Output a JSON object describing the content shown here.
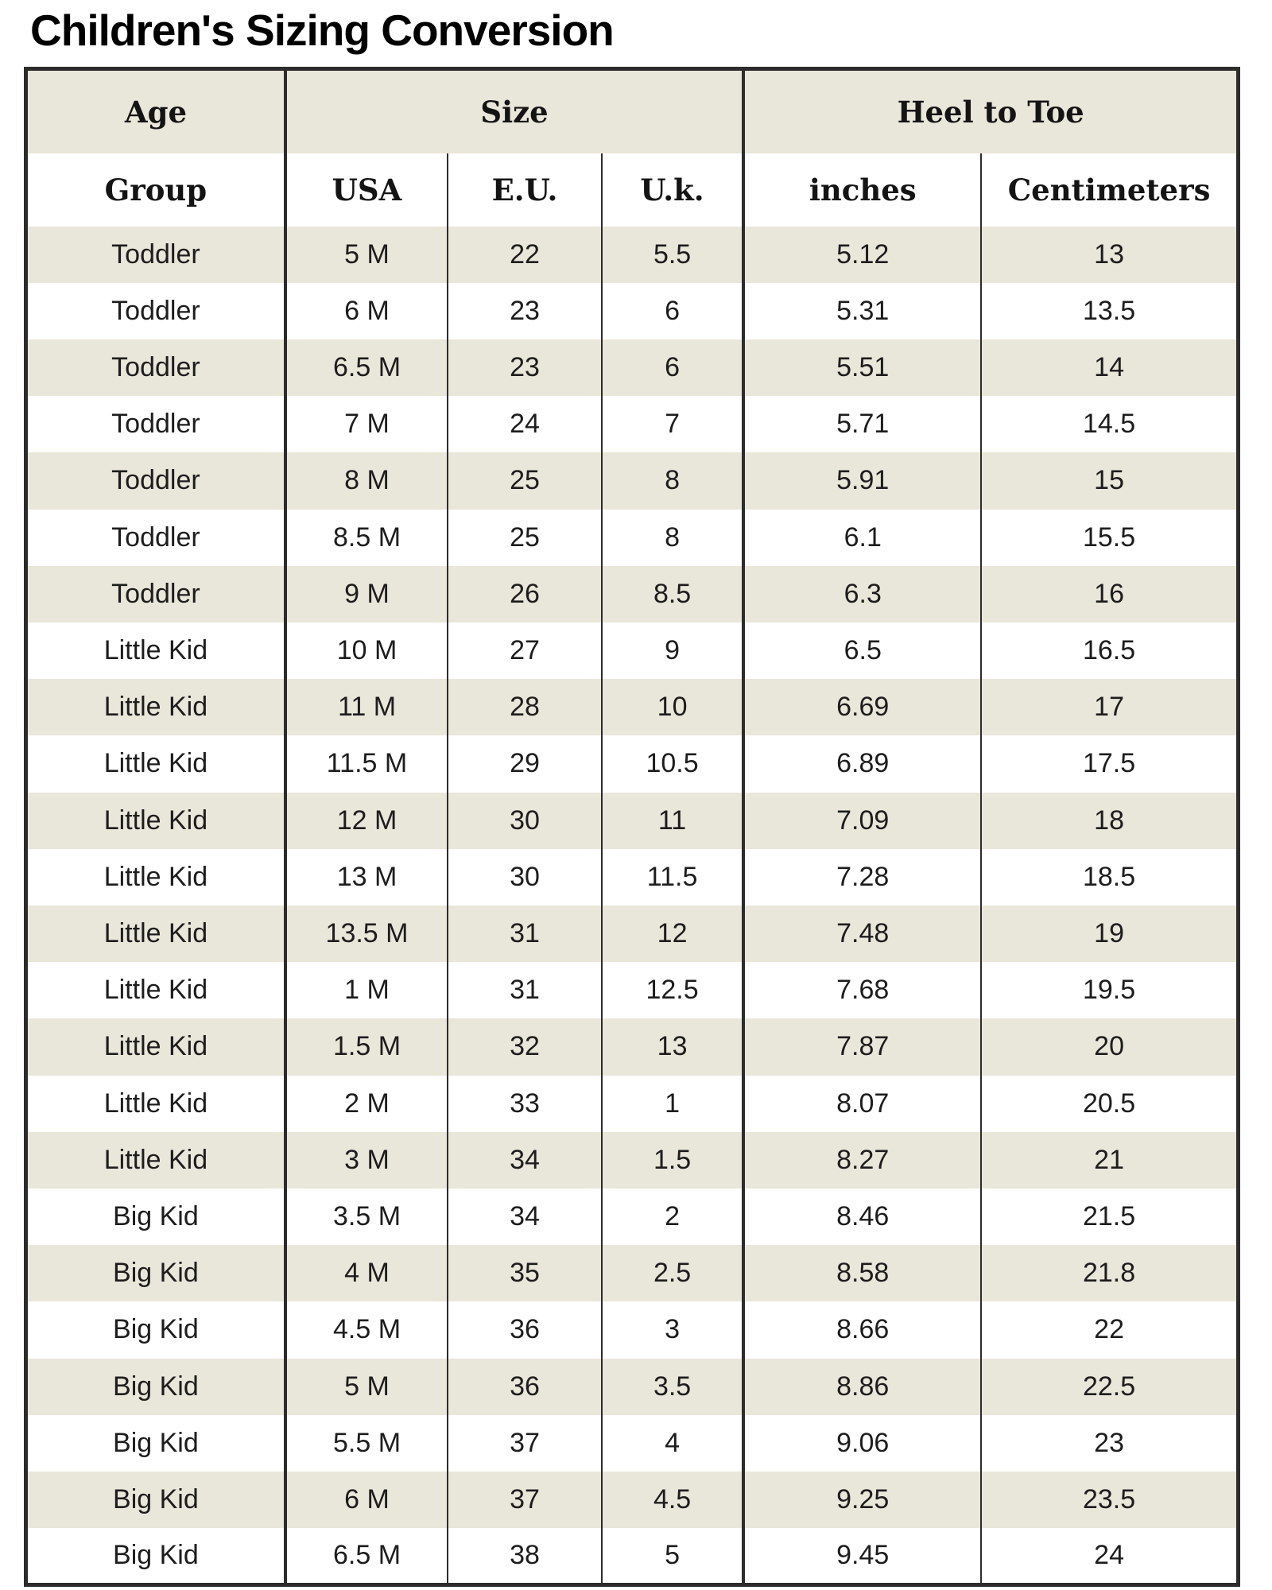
{
  "page": {
    "title": "Children's Sizing Conversion"
  },
  "table": {
    "headers": {
      "age": "Age",
      "group": "Group",
      "size": "Size",
      "heel_to_toe": "Heel to Toe",
      "usa": "USA",
      "eu": "E.U.",
      "uk": "U.k.",
      "inches": "inches",
      "centimeters": "Centimeters"
    },
    "rows": [
      {
        "group": "Toddler",
        "usa": "5 M",
        "eu": "22",
        "uk": "5.5",
        "inches": "5.12",
        "cm": "13"
      },
      {
        "group": "Toddler",
        "usa": "6 M",
        "eu": "23",
        "uk": "6",
        "inches": "5.31",
        "cm": "13.5"
      },
      {
        "group": "Toddler",
        "usa": "6.5 M",
        "eu": "23",
        "uk": "6",
        "inches": "5.51",
        "cm": "14"
      },
      {
        "group": "Toddler",
        "usa": "7 M",
        "eu": "24",
        "uk": "7",
        "inches": "5.71",
        "cm": "14.5"
      },
      {
        "group": "Toddler",
        "usa": "8 M",
        "eu": "25",
        "uk": "8",
        "inches": "5.91",
        "cm": "15"
      },
      {
        "group": "Toddler",
        "usa": "8.5 M",
        "eu": "25",
        "uk": "8",
        "inches": "6.1",
        "cm": "15.5"
      },
      {
        "group": "Toddler",
        "usa": "9 M",
        "eu": "26",
        "uk": "8.5",
        "inches": "6.3",
        "cm": "16"
      },
      {
        "group": "Little Kid",
        "usa": "10 M",
        "eu": "27",
        "uk": "9",
        "inches": "6.5",
        "cm": "16.5"
      },
      {
        "group": "Little Kid",
        "usa": "11 M",
        "eu": "28",
        "uk": "10",
        "inches": "6.69",
        "cm": "17"
      },
      {
        "group": "Little Kid",
        "usa": "11.5 M",
        "eu": "29",
        "uk": "10.5",
        "inches": "6.89",
        "cm": "17.5"
      },
      {
        "group": "Little Kid",
        "usa": "12 M",
        "eu": "30",
        "uk": "11",
        "inches": "7.09",
        "cm": "18"
      },
      {
        "group": "Little Kid",
        "usa": "13 M",
        "eu": "30",
        "uk": "11.5",
        "inches": "7.28",
        "cm": "18.5"
      },
      {
        "group": "Little Kid",
        "usa": "13.5 M",
        "eu": "31",
        "uk": "12",
        "inches": "7.48",
        "cm": "19"
      },
      {
        "group": "Little Kid",
        "usa": "1 M",
        "eu": "31",
        "uk": "12.5",
        "inches": "7.68",
        "cm": "19.5"
      },
      {
        "group": "Little Kid",
        "usa": "1.5 M",
        "eu": "32",
        "uk": "13",
        "inches": "7.87",
        "cm": "20"
      },
      {
        "group": "Little Kid",
        "usa": "2 M",
        "eu": "33",
        "uk": "1",
        "inches": "8.07",
        "cm": "20.5"
      },
      {
        "group": "Little Kid",
        "usa": "3 M",
        "eu": "34",
        "uk": "1.5",
        "inches": "8.27",
        "cm": "21"
      },
      {
        "group": "Big Kid",
        "usa": "3.5 M",
        "eu": "34",
        "uk": "2",
        "inches": "8.46",
        "cm": "21.5"
      },
      {
        "group": "Big Kid",
        "usa": "4 M",
        "eu": "35",
        "uk": "2.5",
        "inches": "8.58",
        "cm": "21.8"
      },
      {
        "group": "Big Kid",
        "usa": "4.5 M",
        "eu": "36",
        "uk": "3",
        "inches": "8.66",
        "cm": "22"
      },
      {
        "group": "Big Kid",
        "usa": "5 M",
        "eu": "36",
        "uk": "3.5",
        "inches": "8.86",
        "cm": "22.5"
      },
      {
        "group": "Big Kid",
        "usa": "5.5 M",
        "eu": "37",
        "uk": "4",
        "inches": "9.06",
        "cm": "23"
      },
      {
        "group": "Big Kid",
        "usa": "6 M",
        "eu": "37",
        "uk": "4.5",
        "inches": "9.25",
        "cm": "23.5"
      },
      {
        "group": "Big Kid",
        "usa": "6.5 M",
        "eu": "38",
        "uk": "5",
        "inches": "9.45",
        "cm": "24"
      }
    ]
  },
  "colors": {
    "stripe": "#e9e6da",
    "border": "#2c2c2c",
    "text": "#1d1d1d"
  }
}
